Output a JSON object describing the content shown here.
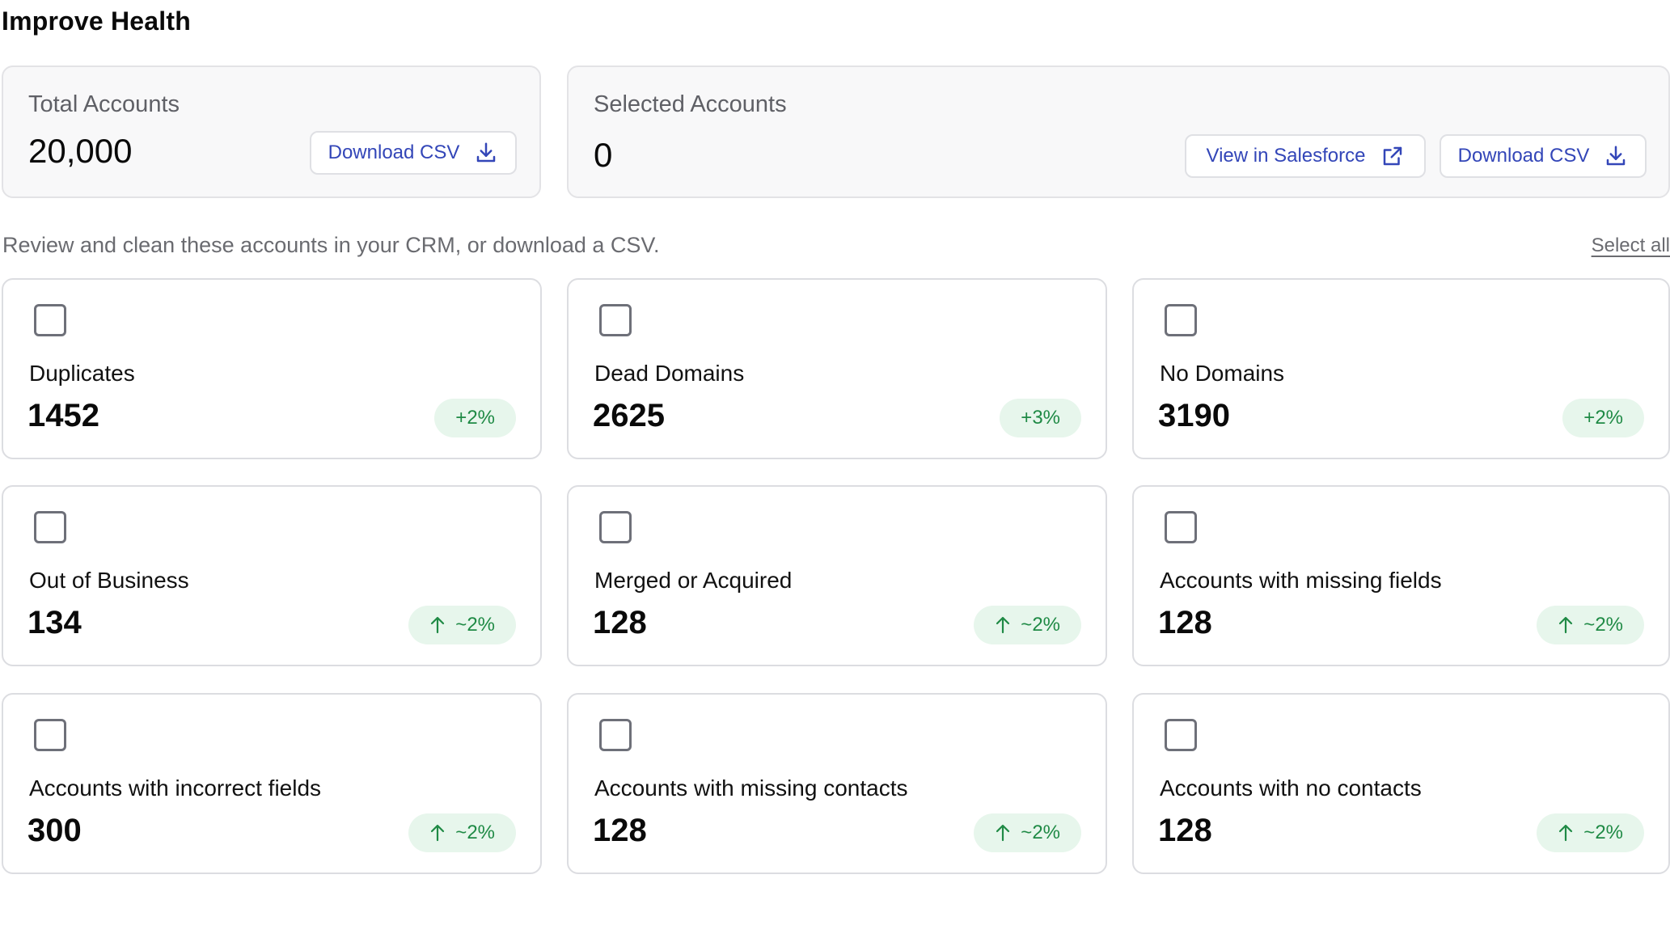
{
  "header": {
    "title": "Improve Health"
  },
  "total_accounts": {
    "label": "Total Accounts",
    "value": "20,000",
    "download_label": "Download CSV"
  },
  "selected_accounts": {
    "label": "Selected Accounts",
    "value": "0",
    "view_label": "View in Salesforce",
    "download_label": "Download CSV"
  },
  "instructions": {
    "text": "Review and clean these accounts in your CRM, or download a CSV.",
    "select_all_label": "Select all"
  },
  "metrics": [
    {
      "label": "Duplicates",
      "value": "1452",
      "change": "+2%",
      "arrow": false
    },
    {
      "label": "Dead Domains",
      "value": "2625",
      "change": "+3%",
      "arrow": false
    },
    {
      "label": "No Domains",
      "value": "3190",
      "change": "+2%",
      "arrow": false
    },
    {
      "label": "Out of Business",
      "value": "134",
      "change": "~2%",
      "arrow": true
    },
    {
      "label": "Merged or Acquired",
      "value": "128",
      "change": "~2%",
      "arrow": true
    },
    {
      "label": "Accounts with missing fields",
      "value": "128",
      "change": "~2%",
      "arrow": true
    },
    {
      "label": "Accounts with incorrect fields",
      "value": "300",
      "change": "~2%",
      "arrow": true
    },
    {
      "label": "Accounts with missing contacts",
      "value": "128",
      "change": "~2%",
      "arrow": true
    },
    {
      "label": "Accounts with no contacts",
      "value": "128",
      "change": "~2%",
      "arrow": true
    }
  ],
  "colors": {
    "accent": "#3346b8",
    "badge_bg": "#e7f6ec",
    "badge_text": "#1f8a45",
    "muted_text": "#6a6b70"
  },
  "icons": {
    "download": "download-icon",
    "external": "external-link-icon",
    "arrow": "arrow-up-icon",
    "checkbox": "checkbox-unchecked"
  }
}
